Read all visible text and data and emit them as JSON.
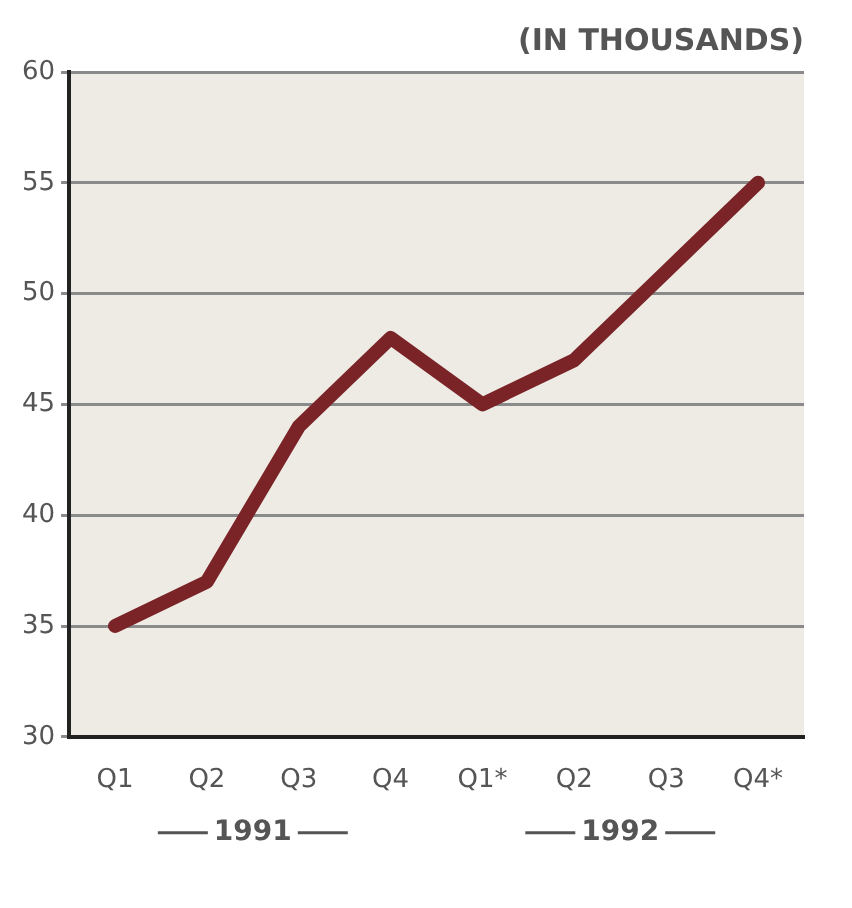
{
  "chart_data": {
    "type": "line",
    "title": "(IN THOUSANDS)",
    "categories": [
      "Q1",
      "Q2",
      "Q3",
      "Q4",
      "Q1*",
      "Q2",
      "Q3",
      "Q4*"
    ],
    "series": [
      {
        "color": "#7a2428",
        "values": [
          35,
          37,
          44,
          48,
          45,
          47,
          51,
          55
        ]
      }
    ],
    "ylim": [
      30,
      60
    ],
    "yticks": [
      30,
      35,
      40,
      45,
      50,
      55,
      60
    ],
    "grid": "y",
    "legend": false,
    "marker": "none",
    "line_style": "solid",
    "annotations": [
      "1991",
      "1992"
    ]
  }
}
